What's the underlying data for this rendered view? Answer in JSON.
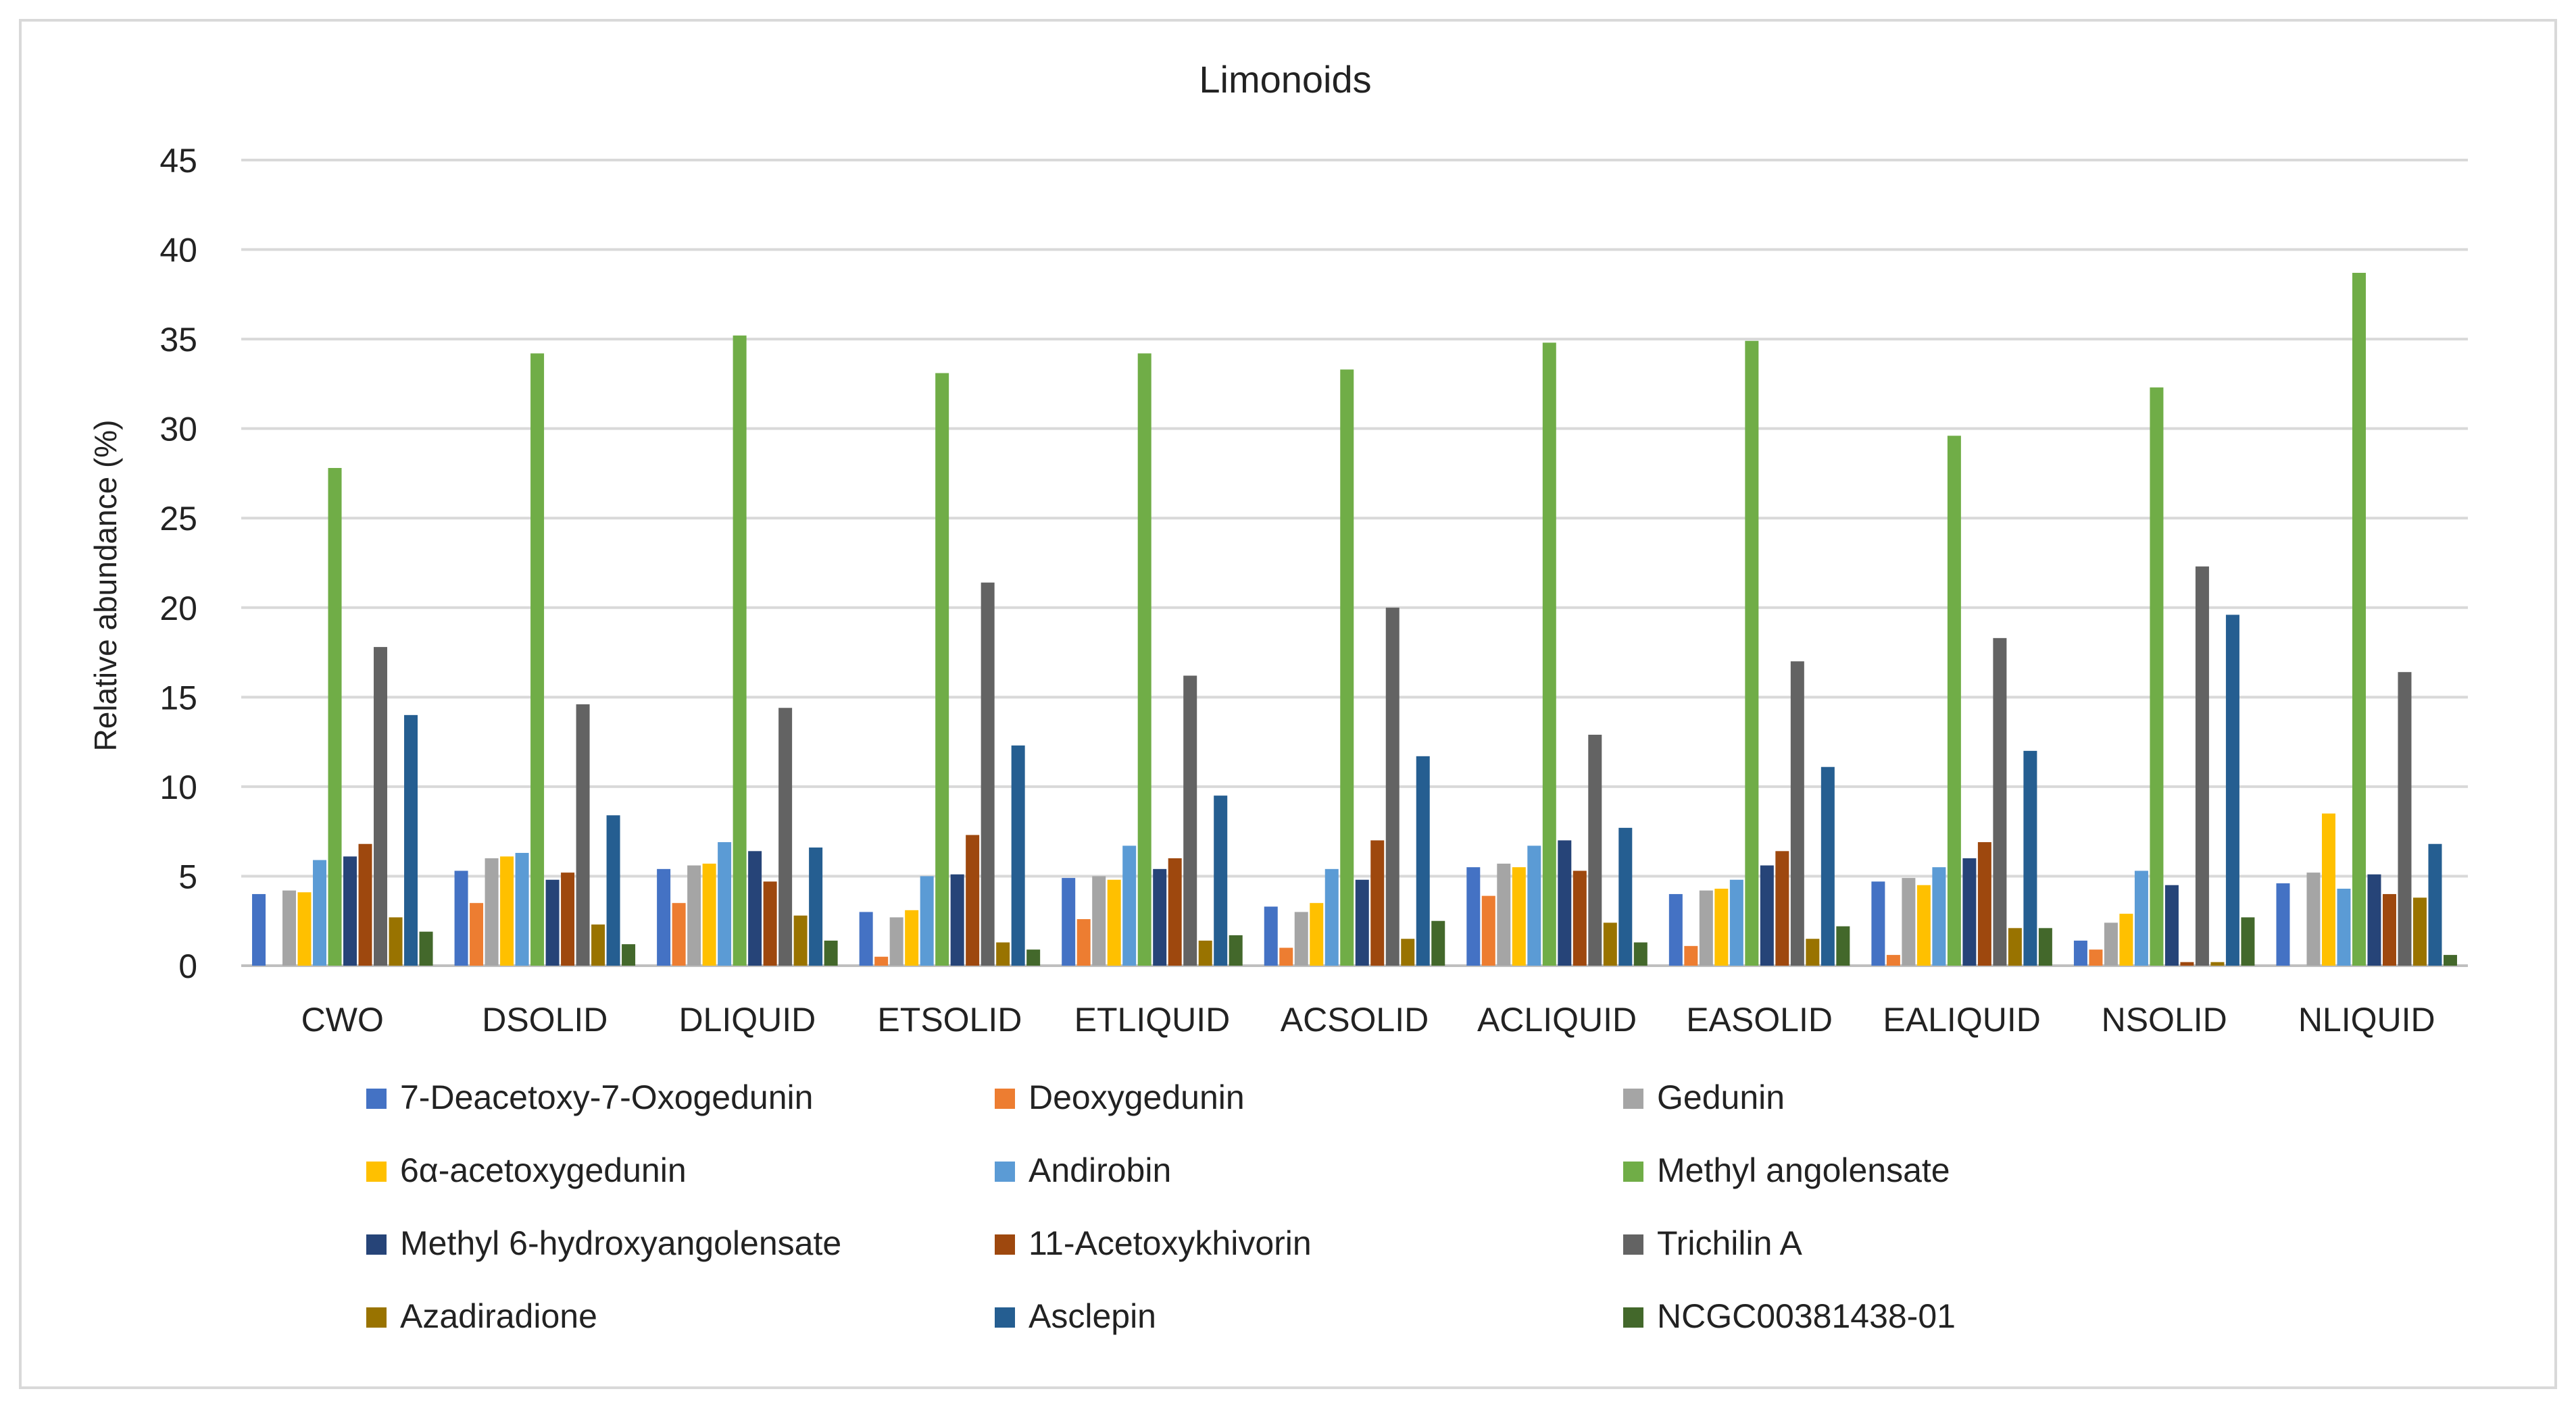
{
  "chart_data": {
    "type": "bar",
    "title": "Limonoids",
    "xlabel": "",
    "ylabel": "Relative abundance (%)",
    "ylim": [
      0,
      45
    ],
    "yticks": [
      0,
      5,
      10,
      15,
      20,
      25,
      30,
      35,
      40,
      45
    ],
    "grid": true,
    "legend_position": "bottom",
    "categories": [
      "CWO",
      "DSOLID",
      "DLIQUID",
      "ETSOLID",
      "ETLIQUID",
      "ACSOLID",
      "ACLIQUID",
      "EASOLID",
      "EALIQUID",
      "NSOLID",
      "NLIQUID"
    ],
    "series": [
      {
        "name": "7-Deacetoxy-7-Oxogedunin",
        "color": "#4472C4",
        "values": [
          4.0,
          5.3,
          5.4,
          3.0,
          4.9,
          3.3,
          5.5,
          4.0,
          4.7,
          1.4,
          4.6
        ]
      },
      {
        "name": "Deoxygedunin",
        "color": "#ED7D31",
        "values": [
          0,
          3.5,
          3.5,
          0.5,
          2.6,
          1.0,
          3.9,
          1.1,
          0.6,
          0.9,
          0
        ]
      },
      {
        "name": "Gedunin",
        "color": "#A5A5A5",
        "values": [
          4.2,
          6.0,
          5.6,
          2.7,
          5.0,
          3.0,
          5.7,
          4.2,
          4.9,
          2.4,
          5.2
        ]
      },
      {
        "name": "6α-acetoxygedunin",
        "color": "#FFC000",
        "values": [
          4.1,
          6.1,
          5.7,
          3.1,
          4.8,
          3.5,
          5.5,
          4.3,
          4.5,
          2.9,
          8.5
        ]
      },
      {
        "name": "Andirobin",
        "color": "#5B9BD5",
        "values": [
          5.9,
          6.3,
          6.9,
          5.0,
          6.7,
          5.4,
          6.7,
          4.8,
          5.5,
          5.3,
          4.3
        ]
      },
      {
        "name": "Methyl angolensate",
        "color": "#70AD47",
        "values": [
          27.8,
          34.2,
          35.2,
          33.1,
          34.2,
          33.3,
          34.8,
          34.9,
          29.6,
          32.3,
          38.7
        ]
      },
      {
        "name": "Methyl 6-hydroxyangolensate",
        "color": "#264478",
        "values": [
          6.1,
          4.8,
          6.4,
          5.1,
          5.4,
          4.8,
          7.0,
          5.6,
          6.0,
          4.5,
          5.1
        ]
      },
      {
        "name": "11-Acetoxykhivorin",
        "color": "#9E480E",
        "values": [
          6.8,
          5.2,
          4.7,
          7.3,
          6.0,
          7.0,
          5.3,
          6.4,
          6.9,
          0.2,
          4.0
        ]
      },
      {
        "name": "Trichilin A",
        "color": "#636363",
        "values": [
          17.8,
          14.6,
          14.4,
          21.4,
          16.2,
          20.0,
          12.9,
          17.0,
          18.3,
          22.3,
          16.4
        ]
      },
      {
        "name": "Azadiradione",
        "color": "#997300",
        "values": [
          2.7,
          2.3,
          2.8,
          1.3,
          1.4,
          1.5,
          2.4,
          1.5,
          2.1,
          0.2,
          3.8
        ]
      },
      {
        "name": "Asclepin",
        "color": "#255E91",
        "values": [
          14.0,
          8.4,
          6.6,
          12.3,
          9.5,
          11.7,
          7.7,
          11.1,
          12.0,
          19.6,
          6.8
        ]
      },
      {
        "name": "NCGC00381438-01",
        "color": "#43682B",
        "values": [
          1.9,
          1.2,
          1.4,
          0.9,
          1.7,
          2.5,
          1.3,
          2.2,
          2.1,
          2.7,
          0.6
        ]
      }
    ]
  }
}
